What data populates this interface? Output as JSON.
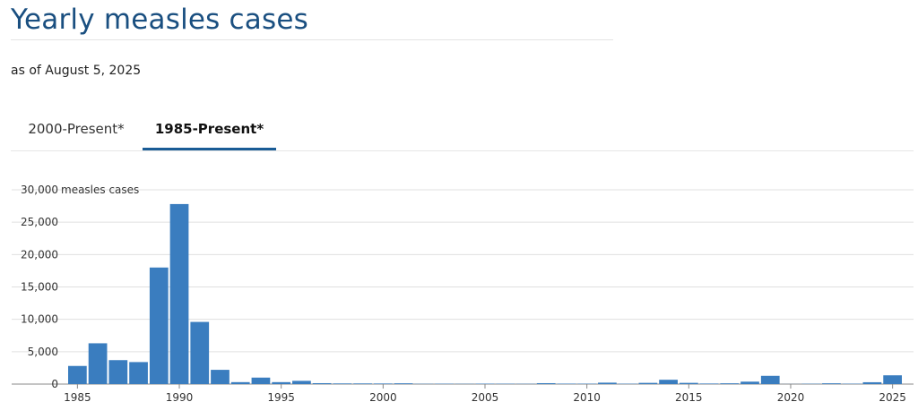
{
  "header": {
    "title": "Yearly measles cases",
    "subtitle": "as of August 5, 2025"
  },
  "tabs": [
    {
      "label": "2000-Present*",
      "active": false
    },
    {
      "label": "1985-Present*",
      "active": true
    }
  ],
  "colors": {
    "title": "#1a4f80",
    "bar": "#3a7dbf",
    "tab_underline": "#1a5c96",
    "grid": "#e0e0e0"
  },
  "chart_data": {
    "type": "bar",
    "title": "",
    "xlabel": "",
    "ylabel": "measles cases",
    "ylim": [
      0,
      30000
    ],
    "yticks": [
      0,
      5000,
      10000,
      15000,
      20000,
      25000,
      30000
    ],
    "ytick_labels": [
      "0",
      "5,000",
      "10,000",
      "15,000",
      "20,000",
      "25,000",
      "30,000"
    ],
    "top_tick_suffix": "measles cases",
    "xticks": [
      "1985",
      "1990",
      "1995",
      "2000",
      "2005",
      "2010",
      "2015",
      "2020",
      "2025"
    ],
    "grid": true,
    "categories": [
      1985,
      1986,
      1987,
      1988,
      1989,
      1990,
      1991,
      1992,
      1993,
      1994,
      1995,
      1996,
      1997,
      1998,
      1999,
      2000,
      2001,
      2002,
      2003,
      2004,
      2005,
      2006,
      2007,
      2008,
      2009,
      2010,
      2011,
      2012,
      2013,
      2014,
      2015,
      2016,
      2017,
      2018,
      2019,
      2020,
      2021,
      2022,
      2023,
      2024,
      2025
    ],
    "values": [
      2800,
      6300,
      3700,
      3400,
      18000,
      27800,
      9600,
      2200,
      300,
      1000,
      300,
      500,
      140,
      100,
      100,
      90,
      120,
      40,
      56,
      37,
      66,
      55,
      43,
      140,
      71,
      63,
      220,
      55,
      187,
      667,
      188,
      86,
      120,
      375,
      1274,
      13,
      49,
      121,
      59,
      285,
      1356
    ]
  }
}
